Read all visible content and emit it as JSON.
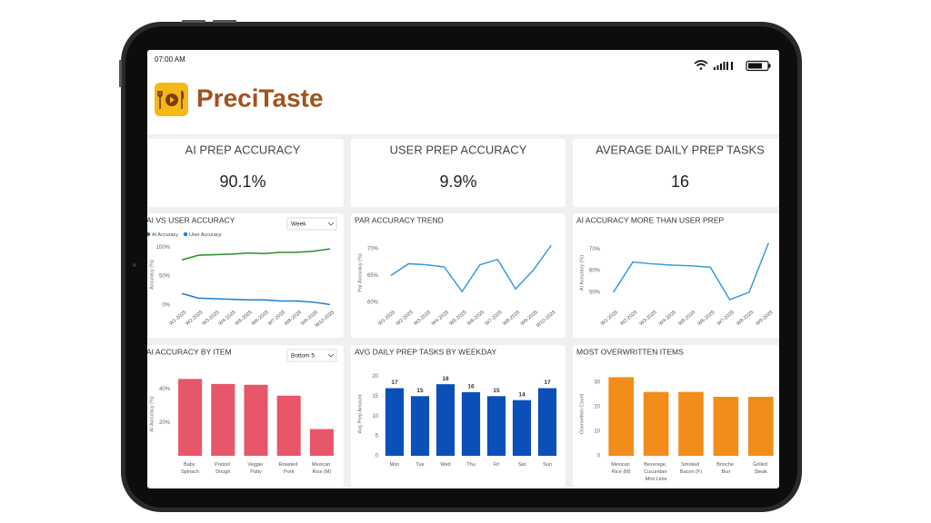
{
  "status_bar": {
    "time": "07:00 AM"
  },
  "header": {
    "brand": "PreciTaste"
  },
  "kpis": [
    {
      "label": "AI PREP ACCURACY",
      "value": "90.1%"
    },
    {
      "label": "USER PREP ACCURACY",
      "value": "9.9%"
    },
    {
      "label": "AVERAGE DAILY PREP TASKS",
      "value": "16"
    }
  ],
  "chart_data": [
    {
      "type": "line",
      "title": "AI VS USER ACCURACY",
      "filter": "Week",
      "ylabel": "Accuracy (%)",
      "categories": [
        "W1-2025",
        "W2-2025",
        "W3-2025",
        "W4-2025",
        "W5-2025",
        "W6-2025",
        "W7-2025",
        "W8-2025",
        "W9-2025",
        "W10-2025"
      ],
      "series": [
        {
          "name": "AI Accuracy",
          "color": "#2e8b2e",
          "values": [
            78,
            86,
            87,
            88,
            90,
            89,
            91,
            91,
            93,
            97
          ]
        },
        {
          "name": "User Accuracy",
          "color": "#1a7fd4",
          "values": [
            20,
            12,
            11,
            10,
            9,
            9,
            7,
            7,
            5,
            1
          ]
        }
      ],
      "legend": "top-left",
      "ylim": [
        0,
        105
      ],
      "yticks": [
        {
          "value": 0,
          "label": "0%"
        },
        {
          "value": 50,
          "label": "50%"
        },
        {
          "value": 100,
          "label": "100%"
        }
      ]
    },
    {
      "type": "line",
      "title": "PAR ACCURACY TREND",
      "ylabel": "Par Accuracy (%)",
      "categories": [
        "W1-2025",
        "W2-2025",
        "W3-2025",
        "W4-2025",
        "W5-2025",
        "W6-2025",
        "W7-2025",
        "W8-2025",
        "W9-2025",
        "W10-2025"
      ],
      "values": [
        65,
        67.2,
        67,
        66.6,
        62,
        67,
        68,
        62.5,
        66,
        70.6
      ],
      "color": "#3a9ad9",
      "ylim": [
        59.5,
        71.5
      ],
      "yticks": [
        {
          "value": 60,
          "label": "60%"
        },
        {
          "value": 65,
          "label": "65%"
        },
        {
          "value": 70,
          "label": "70%"
        }
      ]
    },
    {
      "type": "line",
      "title": "AI ACCURACY MORE THAN USER PREP",
      "ylabel": "AI Accuracy (%)",
      "categories": [
        "W1-2025",
        "W2-2025",
        "W3-2025",
        "W4-2025",
        "W5-2025",
        "W6-2025",
        "W7-2025",
        "W8-2025",
        "W9-2025"
      ],
      "values": [
        50,
        64,
        63.2,
        62.6,
        62.3,
        61.6,
        46.5,
        50,
        73
      ],
      "color": "#3a9ad9",
      "ylim": [
        44,
        74
      ],
      "yticks": [
        {
          "value": 50,
          "label": "50%"
        },
        {
          "value": 60,
          "label": "60%"
        },
        {
          "value": 70,
          "label": "70%"
        }
      ]
    },
    {
      "type": "bar",
      "title": "AI ACCURACY BY ITEM",
      "filter": "Bottom 5",
      "ylabel": "AI Accuracy (%)",
      "categories": [
        "Baby Spinach",
        "Pretzel Dough",
        "Veggie Patty",
        "Roasted Pork",
        "Mexican Rice (M)"
      ],
      "values": [
        46,
        43,
        42.5,
        36,
        16
      ],
      "color": "#e8566a",
      "ylim": [
        0,
        50
      ],
      "yticks": [
        {
          "value": 20,
          "label": "20%"
        },
        {
          "value": 40,
          "label": "40%"
        }
      ]
    },
    {
      "type": "bar",
      "title": "AVG DAILY PREP TASKS BY WEEKDAY",
      "ylabel": "Avg Prep Amount",
      "categories": [
        "Mon",
        "Tue",
        "Wed",
        "Thu",
        "Fri",
        "Sat",
        "Sun"
      ],
      "values": [
        17,
        15,
        18,
        16,
        15,
        14,
        17
      ],
      "color": "#0a50b8",
      "show_values": true,
      "ylim": [
        0,
        21
      ],
      "yticks": [
        0,
        5,
        10,
        15,
        20
      ]
    },
    {
      "type": "bar",
      "title": "MOST OVERWRITTEN ITEMS",
      "ylabel": "Overwritten Count",
      "categories": [
        "Mexican Rice (M)",
        "Beverage, Cucumber Mint Lime",
        "Smoked Bacon (F)",
        "Brioche Bun",
        "Grilled Steak"
      ],
      "values": [
        32,
        26,
        26,
        24,
        24
      ],
      "color": "#f28c1a",
      "ylim": [
        0,
        34
      ],
      "yticks": [
        0,
        10,
        20,
        30
      ]
    }
  ]
}
